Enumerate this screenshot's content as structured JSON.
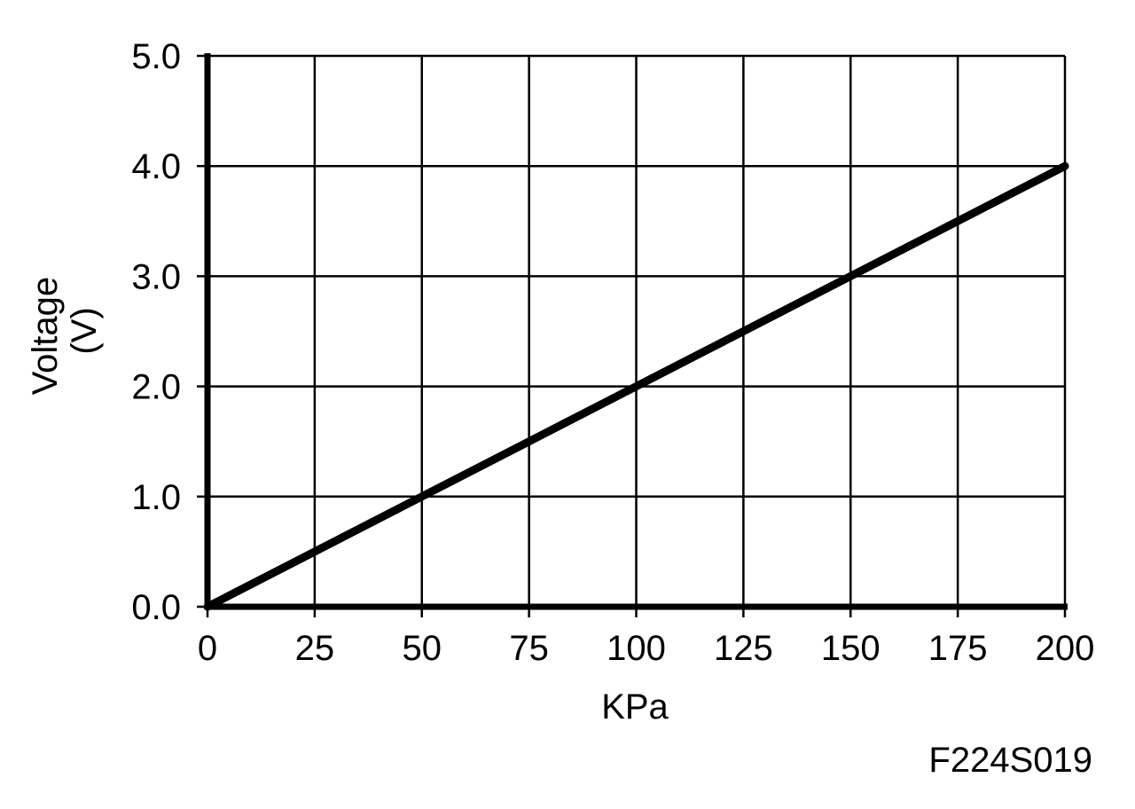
{
  "figure_id": "F224S019",
  "chart_data": {
    "type": "line",
    "title": "",
    "xlabel": "KPa",
    "ylabel_lines": [
      "Voltage",
      "(V)"
    ],
    "x_ticks": [
      0,
      25,
      50,
      75,
      100,
      125,
      150,
      175,
      200
    ],
    "x_tick_labels": [
      "0",
      "25",
      "50",
      "75",
      "100",
      "125",
      "150",
      "175",
      "200"
    ],
    "y_ticks": [
      0,
      1,
      2,
      3,
      4,
      5
    ],
    "y_tick_labels": [
      "0.0",
      "1.0",
      "2.0",
      "3.0",
      "4.0",
      "5.0"
    ],
    "xlim": [
      0,
      200
    ],
    "ylim": [
      0,
      5
    ],
    "grid": true,
    "series": [
      {
        "x": [
          0,
          200
        ],
        "y": [
          0.0,
          4.0
        ],
        "color": "#000000"
      }
    ]
  }
}
